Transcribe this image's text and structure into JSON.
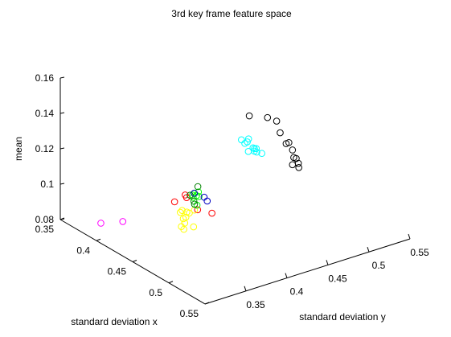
{
  "chart_data": {
    "type": "scatter",
    "title": "3rd key frame feature space",
    "xlabel": "standard deviation x",
    "ylabel": "standard deviation y",
    "zlabel": "mean",
    "grid": false,
    "xlim": [
      0.35,
      0.55
    ],
    "ylim": [
      0.3,
      0.55
    ],
    "zlim": [
      0.08,
      0.16
    ],
    "x_ticks": [
      0.35,
      0.4,
      0.45,
      0.5,
      0.55
    ],
    "x_tick_labels": [
      "0.35",
      "0.4",
      "0.45",
      "0.5",
      "0.55"
    ],
    "y_ticks": [
      0.35,
      0.4,
      0.45,
      0.5,
      0.55
    ],
    "y_tick_labels": [
      "0.35",
      "0.4",
      "0.45",
      "0.5",
      "0.55"
    ],
    "z_ticks": [
      0.08,
      0.1,
      0.12,
      0.14,
      0.16
    ],
    "z_tick_labels": [
      "0.08",
      "0.1",
      "0.12",
      "0.14",
      "0.16"
    ],
    "series": [
      {
        "color": "#ff00ff",
        "marker": "circle",
        "points": [
          {
            "x": 0.397,
            "y": 0.308,
            "z": 0.088
          },
          {
            "x": 0.416,
            "y": 0.318,
            "z": 0.092
          }
        ]
      },
      {
        "color": "#ff0000",
        "marker": "circle",
        "points": [
          {
            "x": 0.449,
            "y": 0.352,
            "z": 0.106
          },
          {
            "x": 0.444,
            "y": 0.402,
            "z": 0.091
          },
          {
            "x": 0.448,
            "y": 0.381,
            "z": 0.097
          },
          {
            "x": 0.443,
            "y": 0.372,
            "z": 0.104
          },
          {
            "x": 0.441,
            "y": 0.372,
            "z": 0.105
          }
        ]
      },
      {
        "color": "#ffff00",
        "marker": "circle",
        "points": [
          {
            "x": 0.455,
            "y": 0.355,
            "z": 0.093
          },
          {
            "x": 0.455,
            "y": 0.358,
            "z": 0.091
          },
          {
            "x": 0.456,
            "y": 0.369,
            "z": 0.091
          },
          {
            "x": 0.454,
            "y": 0.36,
            "z": 0.094
          },
          {
            "x": 0.452,
            "y": 0.36,
            "z": 0.096
          },
          {
            "x": 0.451,
            "y": 0.364,
            "z": 0.096
          },
          {
            "x": 0.449,
            "y": 0.359,
            "z": 0.099
          },
          {
            "x": 0.447,
            "y": 0.363,
            "z": 0.099
          },
          {
            "x": 0.449,
            "y": 0.367,
            "z": 0.098
          },
          {
            "x": 0.449,
            "y": 0.37,
            "z": 0.097
          },
          {
            "x": 0.447,
            "y": 0.378,
            "z": 0.097
          }
        ]
      },
      {
        "color": "#00ff00",
        "marker": "circle",
        "points": [
          {
            "x": 0.446,
            "y": 0.382,
            "z": 0.099
          },
          {
            "x": 0.443,
            "y": 0.38,
            "z": 0.103
          },
          {
            "x": 0.442,
            "y": 0.38,
            "z": 0.104
          },
          {
            "x": 0.442,
            "y": 0.385,
            "z": 0.103
          },
          {
            "x": 0.442,
            "y": 0.388,
            "z": 0.102
          },
          {
            "x": 0.44,
            "y": 0.389,
            "z": 0.104
          }
        ]
      },
      {
        "color": "#008000",
        "marker": "circle",
        "points": [
          {
            "x": 0.446,
            "y": 0.379,
            "z": 0.1
          },
          {
            "x": 0.444,
            "y": 0.38,
            "z": 0.101
          },
          {
            "x": 0.441,
            "y": 0.378,
            "z": 0.104
          },
          {
            "x": 0.44,
            "y": 0.384,
            "z": 0.104
          },
          {
            "x": 0.437,
            "y": 0.391,
            "z": 0.106
          }
        ]
      },
      {
        "color": "#0000c0",
        "marker": "circle",
        "points": [
          {
            "x": 0.44,
            "y": 0.396,
            "z": 0.1
          },
          {
            "x": 0.442,
            "y": 0.398,
            "z": 0.098
          },
          {
            "x": 0.44,
            "y": 0.384,
            "z": 0.104
          }
        ]
      },
      {
        "color": "#00ffff",
        "marker": "circle",
        "points": [
          {
            "x": 0.419,
            "y": 0.46,
            "z": 0.118
          },
          {
            "x": 0.424,
            "y": 0.464,
            "z": 0.112
          },
          {
            "x": 0.417,
            "y": 0.469,
            "z": 0.115
          },
          {
            "x": 0.413,
            "y": 0.474,
            "z": 0.115
          },
          {
            "x": 0.418,
            "y": 0.475,
            "z": 0.111
          },
          {
            "x": 0.42,
            "y": 0.484,
            "z": 0.107
          },
          {
            "x": 0.421,
            "y": 0.474,
            "z": 0.11
          },
          {
            "x": 0.418,
            "y": 0.479,
            "z": 0.11
          },
          {
            "x": 0.421,
            "y": 0.477,
            "z": 0.109
          },
          {
            "x": 0.418,
            "y": 0.465,
            "z": 0.115
          },
          {
            "x": 0.42,
            "y": 0.475,
            "z": 0.111
          }
        ]
      },
      {
        "color": "#000000",
        "marker": "circle",
        "points": [
          {
            "x": 0.397,
            "y": 0.489,
            "z": 0.122
          },
          {
            "x": 0.395,
            "y": 0.513,
            "z": 0.117
          },
          {
            "x": 0.394,
            "y": 0.525,
            "z": 0.113
          },
          {
            "x": 0.4,
            "y": 0.524,
            "z": 0.108
          },
          {
            "x": 0.406,
            "y": 0.526,
            "z": 0.103
          },
          {
            "x": 0.403,
            "y": 0.532,
            "z": 0.102
          },
          {
            "x": 0.408,
            "y": 0.532,
            "z": 0.099
          },
          {
            "x": 0.412,
            "y": 0.53,
            "z": 0.096
          },
          {
            "x": 0.412,
            "y": 0.533,
            "z": 0.095
          },
          {
            "x": 0.417,
            "y": 0.524,
            "z": 0.094
          },
          {
            "x": 0.419,
            "y": 0.53,
            "z": 0.092
          },
          {
            "x": 0.415,
            "y": 0.533,
            "z": 0.093
          }
        ]
      }
    ]
  }
}
